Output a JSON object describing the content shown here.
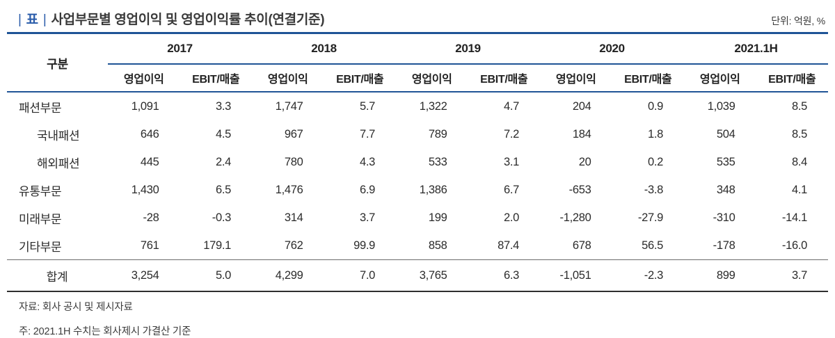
{
  "header": {
    "divider": "|",
    "tag": "표",
    "title": "사업부문별 영업이익 및 영업이익률 추이(연결기준)",
    "unit": "단위: 억원, %"
  },
  "table": {
    "corner_label": "구분",
    "years": [
      "2017",
      "2018",
      "2019",
      "2020",
      "2021.1H"
    ],
    "sub_headers": [
      "영업이익",
      "EBIT/매출"
    ],
    "rows": [
      {
        "label": "패션부문",
        "values": [
          "1,091",
          "3.3",
          "1,747",
          "5.7",
          "1,322",
          "4.7",
          "204",
          "0.9",
          "1,039",
          "8.5"
        ]
      },
      {
        "label": "국내패션",
        "values": [
          "646",
          "4.5",
          "967",
          "7.7",
          "789",
          "7.2",
          "184",
          "1.8",
          "504",
          "8.5"
        ]
      },
      {
        "label": "해외패션",
        "values": [
          "445",
          "2.4",
          "780",
          "4.3",
          "533",
          "3.1",
          "20",
          "0.2",
          "535",
          "8.4"
        ]
      },
      {
        "label": "유통부문",
        "values": [
          "1,430",
          "6.5",
          "1,476",
          "6.9",
          "1,386",
          "6.7",
          "-653",
          "-3.8",
          "348",
          "4.1"
        ]
      },
      {
        "label": "미래부문",
        "values": [
          "-28",
          "-0.3",
          "314",
          "3.7",
          "199",
          "2.0",
          "-1,280",
          "-27.9",
          "-310",
          "-14.1"
        ]
      },
      {
        "label": "기타부문",
        "values": [
          "761",
          "179.1",
          "762",
          "99.9",
          "858",
          "87.4",
          "678",
          "56.5",
          "-178",
          "-16.0"
        ]
      }
    ],
    "total": {
      "label": "합계",
      "values": [
        "3,254",
        "5.0",
        "4,299",
        "7.0",
        "3,765",
        "6.3",
        "-1,051",
        "-2.3",
        "899",
        "3.7"
      ]
    }
  },
  "footnotes": [
    "자료: 회사 공시 및 제시자료",
    "주: 2021.1H 수치는 회사제시 가결산 기준"
  ],
  "colors": {
    "rule_navy": "#1f5496",
    "title_blue": "#2a5caa",
    "text": "#2b2b2b"
  }
}
